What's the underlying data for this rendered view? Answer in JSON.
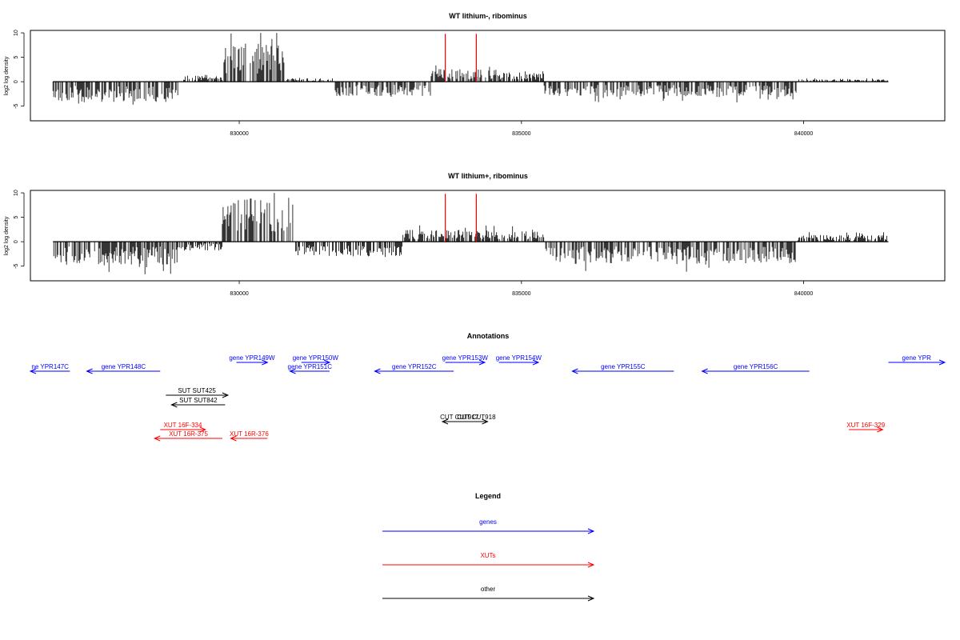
{
  "colors": {
    "gene": "#0000ff",
    "xut": "#ff0000",
    "other": "#000000",
    "mark": "#ff0000",
    "frame": "#000000"
  },
  "chart_data": [
    {
      "type": "bar",
      "title": "WT lithium-, ribominus",
      "ylabel": "log2 log density",
      "xlim": [
        826300,
        842500
      ],
      "ylim": [
        -8,
        10.5
      ],
      "xticks": [
        830000,
        835000,
        840000
      ],
      "yticks": [
        -5,
        0,
        5,
        10
      ],
      "marks": [
        833650,
        834200
      ],
      "profile": [
        {
          "x": [
            826700,
            829000
          ],
          "y": -3.5
        },
        {
          "x": [
            829000,
            829700
          ],
          "y": 1.2
        },
        {
          "x": [
            829700,
            830800
          ],
          "y": 6.5
        },
        {
          "x": [
            830800,
            831700
          ],
          "y": 0.6
        },
        {
          "x": [
            831700,
            833400
          ],
          "y": -2.5
        },
        {
          "x": [
            833400,
            834600
          ],
          "y": 2.2
        },
        {
          "x": [
            834600,
            835400
          ],
          "y": 1.6
        },
        {
          "x": [
            835400,
            839900
          ],
          "y": -2.6
        },
        {
          "x": [
            839900,
            841500
          ],
          "y": 0.4
        }
      ]
    },
    {
      "type": "bar",
      "title": "WT lithium+, ribominus",
      "ylabel": "log2 log density",
      "xlim": [
        826300,
        842500
      ],
      "ylim": [
        -8,
        10.5
      ],
      "xticks": [
        830000,
        835000,
        840000
      ],
      "yticks": [
        -5,
        0,
        5,
        10
      ],
      "marks": [
        833650,
        834200
      ],
      "profile": [
        {
          "x": [
            826700,
            828900
          ],
          "y": -4.0
        },
        {
          "x": [
            828900,
            829700
          ],
          "y": -1.5
        },
        {
          "x": [
            829700,
            831000
          ],
          "y": 7.5
        },
        {
          "x": [
            831000,
            832900
          ],
          "y": -2.5
        },
        {
          "x": [
            832900,
            835400
          ],
          "y": 2.0
        },
        {
          "x": [
            835400,
            839900
          ],
          "y": -3.8
        },
        {
          "x": [
            839900,
            841500
          ],
          "y": 1.2
        }
      ]
    }
  ],
  "annotations": {
    "title": "Annotations",
    "xlim": [
      826300,
      842500
    ],
    "items": [
      {
        "label": "ne YPR147C",
        "kind": "gene",
        "start": 826300,
        "end": 827000,
        "strand": "-",
        "row": 1
      },
      {
        "label": "gene YPR148C",
        "kind": "gene",
        "start": 827300,
        "end": 828600,
        "strand": "-",
        "row": 1
      },
      {
        "label": "gene YPR149W",
        "kind": "gene",
        "start": 829950,
        "end": 830500,
        "strand": "+",
        "row": 0
      },
      {
        "label": "gene YPR150W",
        "kind": "gene",
        "start": 831100,
        "end": 831600,
        "strand": "+",
        "row": 0
      },
      {
        "label": "gene YPR151C",
        "kind": "gene",
        "start": 830900,
        "end": 831600,
        "strand": "-",
        "row": 1
      },
      {
        "label": "gene YPR152C",
        "kind": "gene",
        "start": 832400,
        "end": 833800,
        "strand": "-",
        "row": 1
      },
      {
        "label": "gene YPR153W",
        "kind": "gene",
        "start": 833650,
        "end": 834350,
        "strand": "+",
        "row": 0
      },
      {
        "label": "gene YPR154W",
        "kind": "gene",
        "start": 834600,
        "end": 835300,
        "strand": "+",
        "row": 0
      },
      {
        "label": "gene YPR155C",
        "kind": "gene",
        "start": 835900,
        "end": 837700,
        "strand": "-",
        "row": 1
      },
      {
        "label": "gene YPR156C",
        "kind": "gene",
        "start": 838200,
        "end": 840100,
        "strand": "-",
        "row": 1
      },
      {
        "label": "gene YPR",
        "kind": "gene",
        "start": 841500,
        "end": 842500,
        "strand": "+",
        "row": 0
      },
      {
        "label": "SUT SUT425",
        "kind": "other",
        "start": 828700,
        "end": 829800,
        "strand": "+",
        "row": 2
      },
      {
        "label": "SUT SUT842",
        "kind": "other",
        "start": 828800,
        "end": 829750,
        "strand": "-",
        "row": 3
      },
      {
        "label": "CUT CUT917",
        "kind": "other",
        "start": 833600,
        "end": 834200,
        "strand": "-",
        "row": 4
      },
      {
        "label": "CUT CUT918",
        "kind": "other",
        "start": 834000,
        "end": 834400,
        "strand": "+",
        "row": 4
      },
      {
        "label": "XUT 16F-334",
        "kind": "xut",
        "start": 828600,
        "end": 829400,
        "strand": "+",
        "row": 5
      },
      {
        "label": "XUT 16R-375",
        "kind": "xut",
        "start": 828500,
        "end": 829700,
        "strand": "-",
        "row": 6
      },
      {
        "label": "XUT 16R-376",
        "kind": "xut",
        "start": 829850,
        "end": 830500,
        "strand": "-",
        "row": 6
      },
      {
        "label": "XUT 16F-329",
        "kind": "xut",
        "start": 840800,
        "end": 841400,
        "strand": "+",
        "row": 5
      }
    ]
  },
  "legend": {
    "title": "Legend",
    "items": [
      {
        "label": "genes",
        "kind": "gene"
      },
      {
        "label": "XUTs",
        "kind": "xut"
      },
      {
        "label": "other",
        "kind": "other"
      }
    ]
  }
}
